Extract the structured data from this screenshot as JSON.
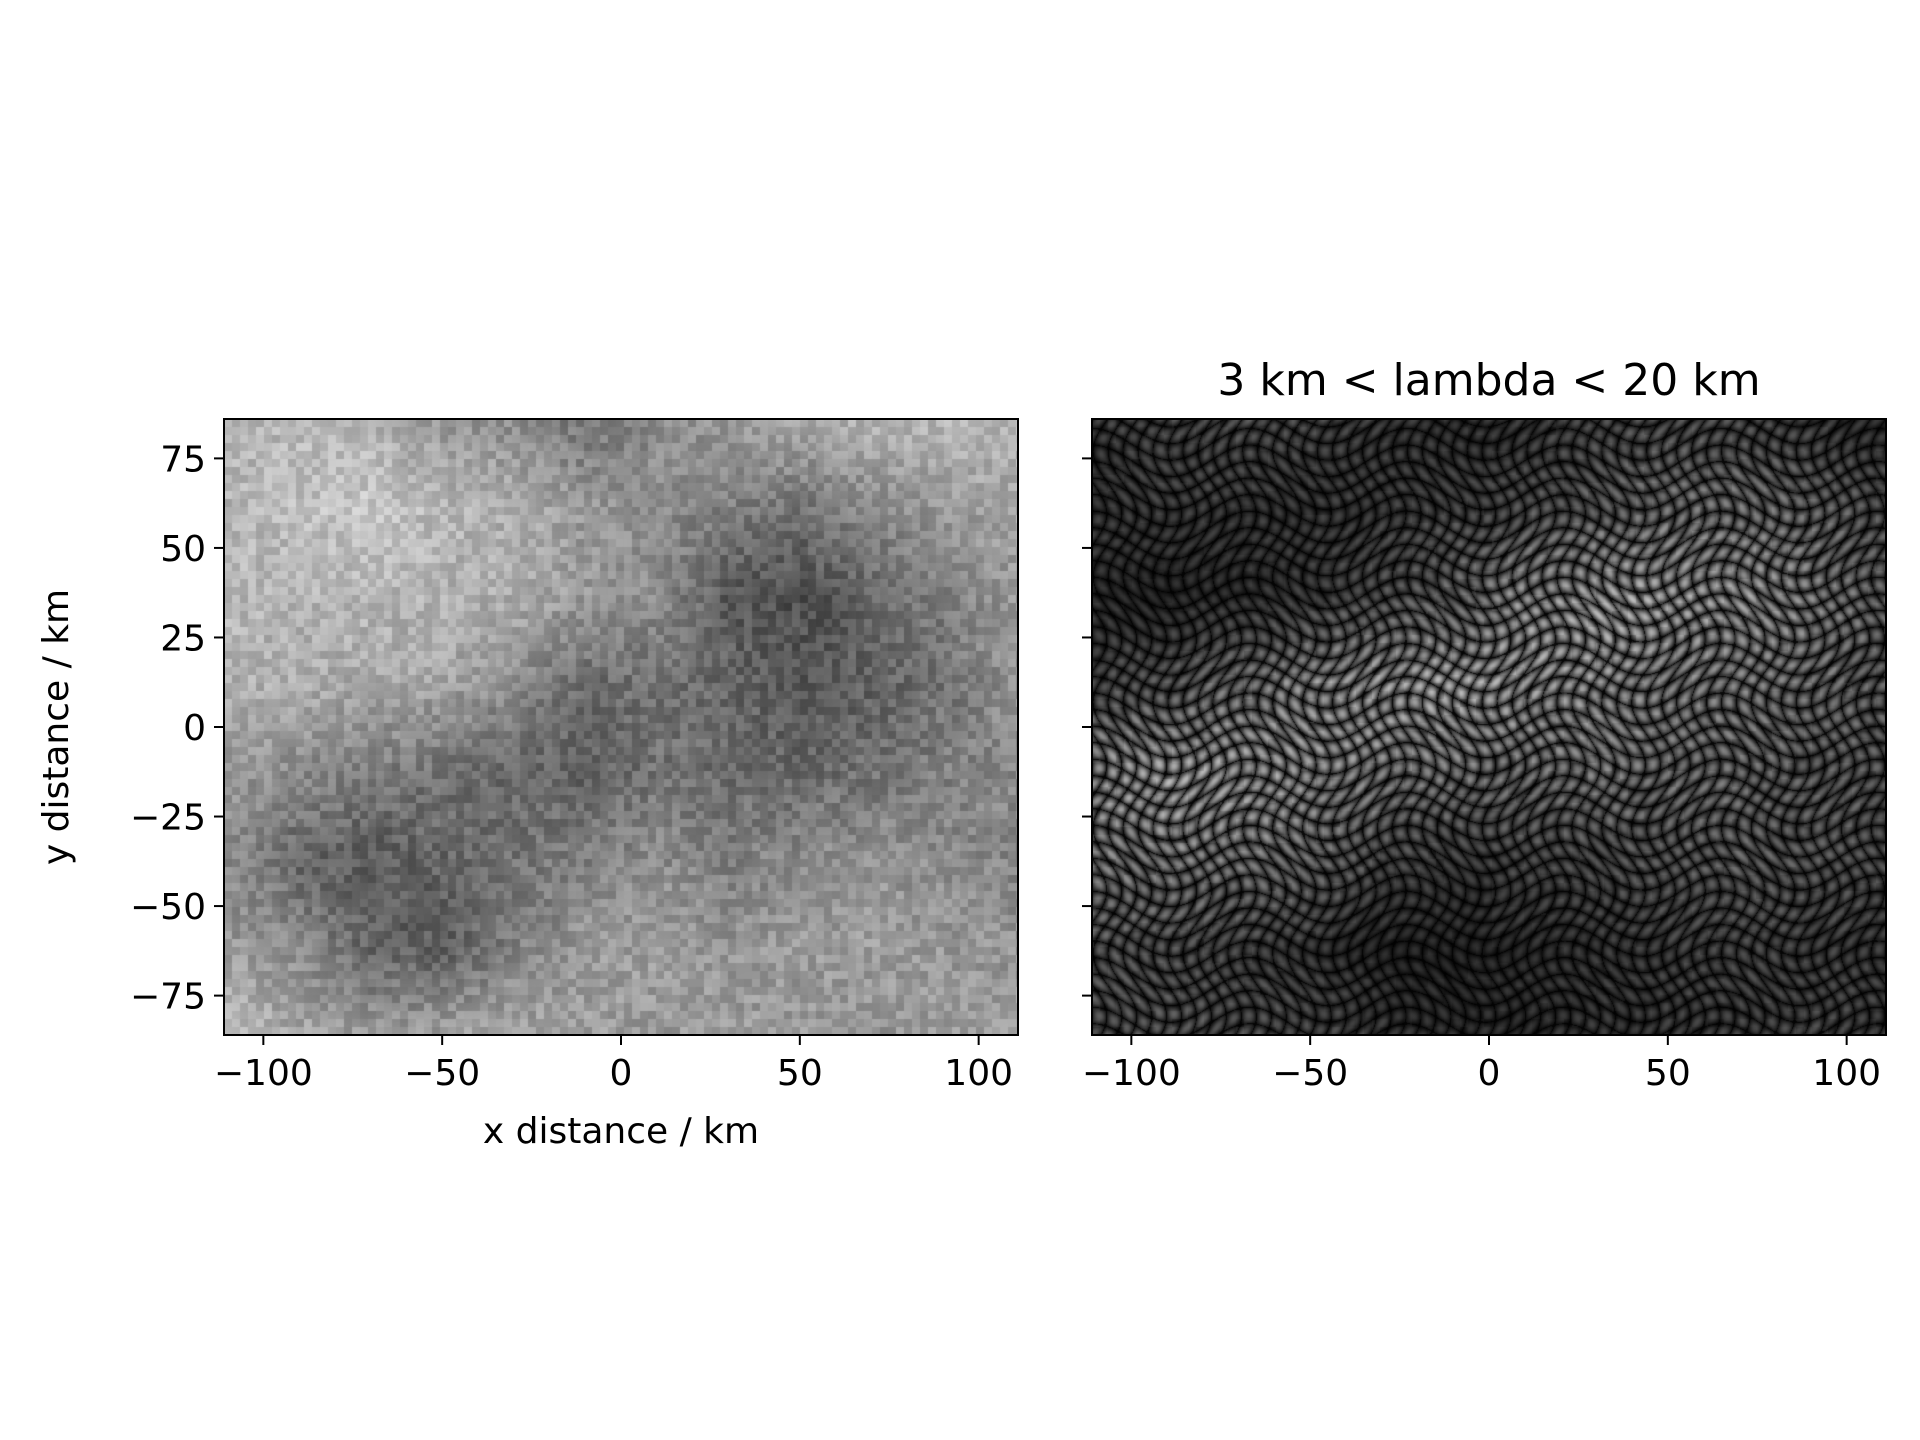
{
  "chart_data": [
    {
      "type": "heatmap",
      "name": "raw-field",
      "title": "",
      "xlabel": "x distance / km",
      "ylabel": "y distance / km",
      "xlim": [
        -111,
        111
      ],
      "ylim": [
        -86,
        86
      ],
      "xticks": [
        -100,
        -50,
        0,
        50,
        100
      ],
      "xtick_labels": [
        "−100",
        "−50",
        "0",
        "50",
        "100"
      ],
      "yticks": [
        75,
        50,
        25,
        0,
        -25,
        -50,
        -75
      ],
      "ytick_labels": [
        "75",
        "50",
        "25",
        "0",
        "−25",
        "−50",
        "−75"
      ],
      "colormap": "gray",
      "values": [
        [
          0.7,
          0.72,
          0.7,
          0.6,
          0.55,
          0.45,
          0.55,
          0.6,
          0.68,
          0.7,
          0.72,
          0.7
        ],
        [
          0.7,
          0.75,
          0.78,
          0.72,
          0.68,
          0.6,
          0.55,
          0.5,
          0.45,
          0.55,
          0.6,
          0.65
        ],
        [
          0.72,
          0.7,
          0.72,
          0.7,
          0.68,
          0.6,
          0.55,
          0.35,
          0.3,
          0.4,
          0.5,
          0.6
        ],
        [
          0.7,
          0.68,
          0.66,
          0.65,
          0.55,
          0.42,
          0.45,
          0.4,
          0.35,
          0.38,
          0.45,
          0.58
        ],
        [
          0.6,
          0.55,
          0.5,
          0.45,
          0.4,
          0.38,
          0.45,
          0.42,
          0.4,
          0.45,
          0.5,
          0.55
        ],
        [
          0.55,
          0.4,
          0.35,
          0.4,
          0.45,
          0.5,
          0.55,
          0.5,
          0.55,
          0.58,
          0.55,
          0.52
        ],
        [
          0.6,
          0.55,
          0.4,
          0.35,
          0.5,
          0.6,
          0.62,
          0.58,
          0.6,
          0.62,
          0.6,
          0.58
        ],
        [
          0.75,
          0.65,
          0.6,
          0.62,
          0.65,
          0.62,
          0.6,
          0.62,
          0.6,
          0.58,
          0.6,
          0.62
        ]
      ]
    },
    {
      "type": "heatmap",
      "name": "bandpass-amplitude",
      "title": "3 km < lambda < 20 km",
      "xlabel": "",
      "ylabel": "",
      "xlim": [
        -111,
        111
      ],
      "ylim": [
        -86,
        86
      ],
      "xticks": [
        -100,
        -50,
        0,
        50,
        100
      ],
      "xtick_labels": [
        "−100",
        "−50",
        "0",
        "50",
        "100"
      ],
      "yticks": [
        75,
        50,
        25,
        0,
        -25,
        -50,
        -75
      ],
      "ytick_labels": [],
      "colormap": "gray",
      "values": [
        [
          0.15,
          0.18,
          0.2,
          0.18,
          0.15,
          0.12,
          0.14,
          0.18,
          0.2,
          0.18,
          0.15,
          0.12
        ],
        [
          0.14,
          0.16,
          0.15,
          0.14,
          0.15,
          0.18,
          0.2,
          0.24,
          0.28,
          0.3,
          0.26,
          0.2
        ],
        [
          0.12,
          0.1,
          0.12,
          0.15,
          0.2,
          0.25,
          0.35,
          0.4,
          0.38,
          0.36,
          0.32,
          0.25
        ],
        [
          0.18,
          0.22,
          0.28,
          0.35,
          0.38,
          0.4,
          0.38,
          0.35,
          0.32,
          0.3,
          0.28,
          0.24
        ],
        [
          0.35,
          0.4,
          0.38,
          0.36,
          0.32,
          0.3,
          0.28,
          0.3,
          0.28,
          0.26,
          0.24,
          0.22
        ],
        [
          0.3,
          0.32,
          0.3,
          0.28,
          0.2,
          0.16,
          0.18,
          0.2,
          0.22,
          0.24,
          0.22,
          0.2
        ],
        [
          0.22,
          0.2,
          0.18,
          0.15,
          0.1,
          0.1,
          0.12,
          0.14,
          0.16,
          0.18,
          0.16,
          0.15
        ],
        [
          0.2,
          0.22,
          0.2,
          0.18,
          0.15,
          0.12,
          0.12,
          0.14,
          0.15,
          0.16,
          0.18,
          0.16
        ]
      ]
    }
  ]
}
